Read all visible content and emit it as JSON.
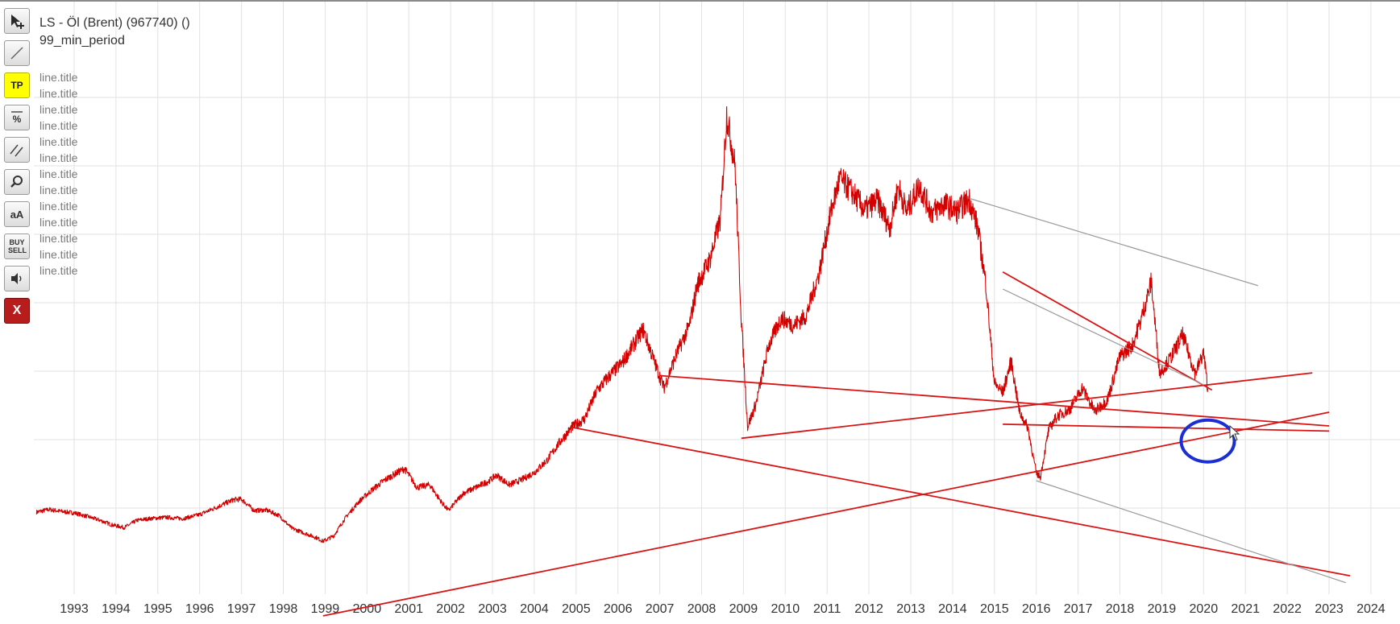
{
  "window": {
    "instrument_title": "LS - Öl (Brent) (967740) ()",
    "period_label": "99_min_period"
  },
  "legend_items": [
    "line.title",
    "line.title",
    "line.title",
    "line.title",
    "line.title",
    "line.title",
    "line.title",
    "line.title",
    "line.title",
    "line.title",
    "line.title",
    "line.title",
    "line.title"
  ],
  "toolbar": [
    {
      "name": "pointer-tool-button",
      "icon": "cursor-plus-icon",
      "label": ""
    },
    {
      "name": "line-tool-button",
      "icon": "diagonal-line-icon",
      "label": ""
    },
    {
      "name": "tp-button",
      "icon": "",
      "label": "TP"
    },
    {
      "name": "percent-tool-button",
      "icon": "percent-icon",
      "label": "%"
    },
    {
      "name": "parallel-lines-button",
      "icon": "parallel-lines-icon",
      "label": ""
    },
    {
      "name": "zoom-button",
      "icon": "magnifier-icon",
      "label": ""
    },
    {
      "name": "font-size-button",
      "icon": "",
      "label": "aA"
    },
    {
      "name": "buy-sell-button",
      "icon": "",
      "label": "BUY SELL"
    },
    {
      "name": "sound-button",
      "icon": "speaker-icon",
      "label": ""
    },
    {
      "name": "close-button",
      "icon": "",
      "label": "X"
    }
  ],
  "colors": {
    "price": "#d40000",
    "trendline": "#d81414",
    "grey_line": "#9a9a9a",
    "highlight_circle": "#1a2ed6",
    "grid": "#e2e2e2"
  },
  "chart_data": {
    "type": "line",
    "series": [
      {
        "x": [
          1992.1,
          1992.4,
          1992.7,
          1993.0,
          1993.3,
          1993.6,
          1993.9,
          1994.2,
          1994.5,
          1994.8,
          1995.2,
          1995.6,
          1996.0,
          1996.4,
          1996.8,
          1997.0,
          1997.3,
          1997.6,
          1997.9,
          1998.2,
          1998.5,
          1998.8,
          1998.95,
          1999.2,
          1999.5,
          1999.8,
          2000.1,
          2000.4,
          2000.7,
          2000.9,
          2001.2,
          2001.5,
          2001.8,
          2001.95,
          2002.3,
          2002.6,
          2002.9,
          2003.1,
          2003.4,
          2003.7,
          2004.0,
          2004.3,
          2004.6,
          2004.9,
          2005.2,
          2005.5,
          2005.8,
          2006.1,
          2006.4,
          2006.6,
          2006.9,
          2007.1,
          2007.4,
          2007.7,
          2007.9,
          2008.2,
          2008.45,
          2008.6,
          2008.8,
          2008.95,
          2009.1,
          2009.3,
          2009.6,
          2009.9,
          2010.2,
          2010.5,
          2010.8,
          2011.1,
          2011.3,
          2011.6,
          2011.9,
          2012.2,
          2012.5,
          2012.7,
          2012.9,
          2013.2,
          2013.5,
          2013.8,
          2014.1,
          2014.4,
          2014.6,
          2014.8,
          2015.0,
          2015.2,
          2015.4,
          2015.6,
          2015.8,
          2016.0,
          2016.1,
          2016.3,
          2016.5,
          2016.8,
          2017.1,
          2017.4,
          2017.7,
          2018.0,
          2018.3,
          2018.5,
          2018.75,
          2018.95,
          2019.2,
          2019.5,
          2019.8,
          2020.0,
          2020.1
        ],
        "y": [
          18.8,
          19.6,
          19.0,
          18.6,
          17.6,
          16.5,
          15.1,
          14.3,
          16.4,
          16.9,
          17.3,
          16.9,
          18.1,
          20.2,
          22.4,
          22.6,
          19.3,
          19.4,
          17.8,
          14.1,
          12.7,
          11.3,
          10.3,
          11.8,
          17.4,
          21.8,
          25.1,
          28.0,
          30.2,
          31.5,
          26.0,
          26.8,
          21.4,
          19.3,
          24.3,
          26.0,
          27.8,
          29.6,
          26.8,
          28.3,
          30.4,
          33.9,
          39.1,
          43.6,
          46.0,
          54.4,
          58.7,
          62.4,
          68.3,
          72.3,
          61.8,
          55.1,
          65.0,
          73.0,
          85.4,
          92.7,
          104.4,
          135.0,
          120.0,
          75.0,
          43.8,
          50.5,
          67.4,
          75.5,
          73.4,
          76.2,
          88.3,
          107.0,
          116.2,
          112.3,
          107.0,
          110.0,
          101.9,
          114.0,
          106.6,
          114.3,
          106.3,
          108.9,
          106.6,
          110.2,
          102.0,
          85.0,
          56.4,
          53.8,
          63.0,
          48.0,
          43.5,
          30.2,
          29.1,
          43.0,
          46.9,
          48.8,
          55.2,
          48.2,
          51.6,
          64.3,
          67.6,
          74.9,
          86.2,
          59.5,
          63.6,
          70.5,
          59.4,
          65.3,
          54.9
        ]
      }
    ],
    "xlim": [
      1992.1,
      2024.5
    ],
    "ylim": [
      0,
      160
    ],
    "x_ticks": [
      "1993",
      "1994",
      "1995",
      "1996",
      "1997",
      "1998",
      "1999",
      "2000",
      "2001",
      "2002",
      "2003",
      "2004",
      "2005",
      "2006",
      "2007",
      "2008",
      "2009",
      "2010",
      "2011",
      "2012",
      "2013",
      "2014",
      "2015",
      "2016",
      "2017",
      "2018",
      "2019",
      "2020",
      "2021",
      "2022",
      "2023",
      "2024"
    ],
    "y_gridlines": [
      20,
      40,
      60,
      80,
      100,
      120,
      140
    ],
    "grid": true,
    "trendlines": [
      {
        "x1": 2007.0,
        "y1": 58.7,
        "x2": 2023.0,
        "y2": 44.0,
        "color": "trendline"
      },
      {
        "x1": 2004.9,
        "y1": 43.6,
        "x2": 2023.5,
        "y2": 0.2,
        "color": "trendline"
      },
      {
        "x1": 2008.95,
        "y1": 40.4,
        "x2": 2022.6,
        "y2": 59.5,
        "color": "trendline"
      },
      {
        "x1": 1998.95,
        "y1": -11.5,
        "x2": 2023.0,
        "y2": 48.0,
        "color": "trendline"
      },
      {
        "x1": 2015.2,
        "y1": 89.0,
        "x2": 2020.2,
        "y2": 54.5,
        "color": "trendline"
      },
      {
        "x1": 2015.2,
        "y1": 44.5,
        "x2": 2023.0,
        "y2": 42.5,
        "color": "trendline"
      },
      {
        "x1": 2014.4,
        "y1": 110.5,
        "x2": 2021.3,
        "y2": 85.0,
        "color": "grey_line"
      },
      {
        "x1": 2015.2,
        "y1": 84.0,
        "x2": 2020.0,
        "y2": 56.0,
        "color": "grey_line"
      },
      {
        "x1": 2016.0,
        "y1": 28.0,
        "x2": 2023.4,
        "y2": -1.8,
        "color": "grey_line"
      }
    ],
    "marker": {
      "shape": "ellipse",
      "x": 2020.1,
      "y": 39.6,
      "color": "highlight_circle"
    }
  }
}
